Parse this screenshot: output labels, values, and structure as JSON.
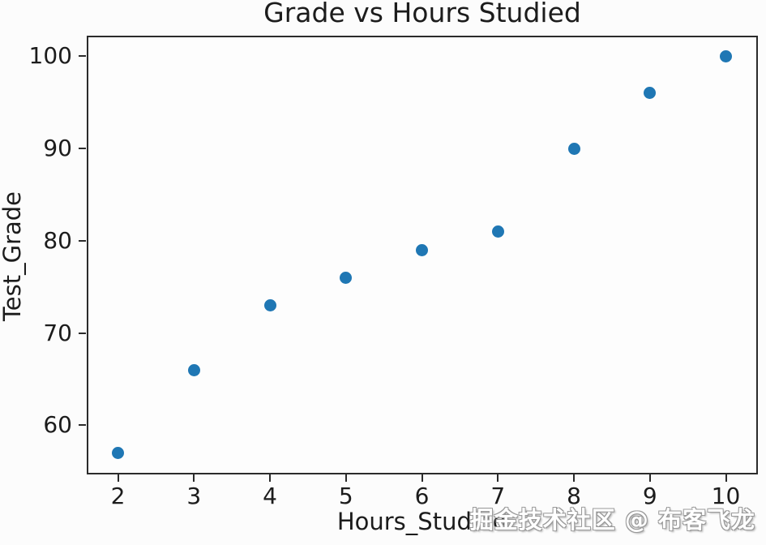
{
  "chart_data": {
    "type": "scatter",
    "title": "Grade vs Hours Studied",
    "xlabel": "Hours_Studied",
    "ylabel": "Test_Grade",
    "x": [
      2,
      3,
      4,
      5,
      6,
      7,
      8,
      9,
      10
    ],
    "y": [
      57,
      66,
      73,
      76,
      79,
      81,
      90,
      96,
      100
    ],
    "xticks": [
      2,
      3,
      4,
      5,
      6,
      7,
      8,
      9,
      10
    ],
    "yticks": [
      60,
      70,
      80,
      90,
      100
    ],
    "xlim": [
      1.6,
      10.4
    ],
    "ylim": [
      54.85,
      102.15
    ],
    "grid": false,
    "legend": null,
    "marker_color": "#1f77b4"
  },
  "watermark": {
    "text": "掘金技术社区 @ 布客飞龙"
  },
  "colors": {
    "marker": "#1f77b4",
    "axis": "#2b2b2b",
    "text": "#1c1c1c",
    "watermark_fill": "#ffffff",
    "watermark_outline": "#9a9a9a",
    "background": "#fcfcfc"
  }
}
